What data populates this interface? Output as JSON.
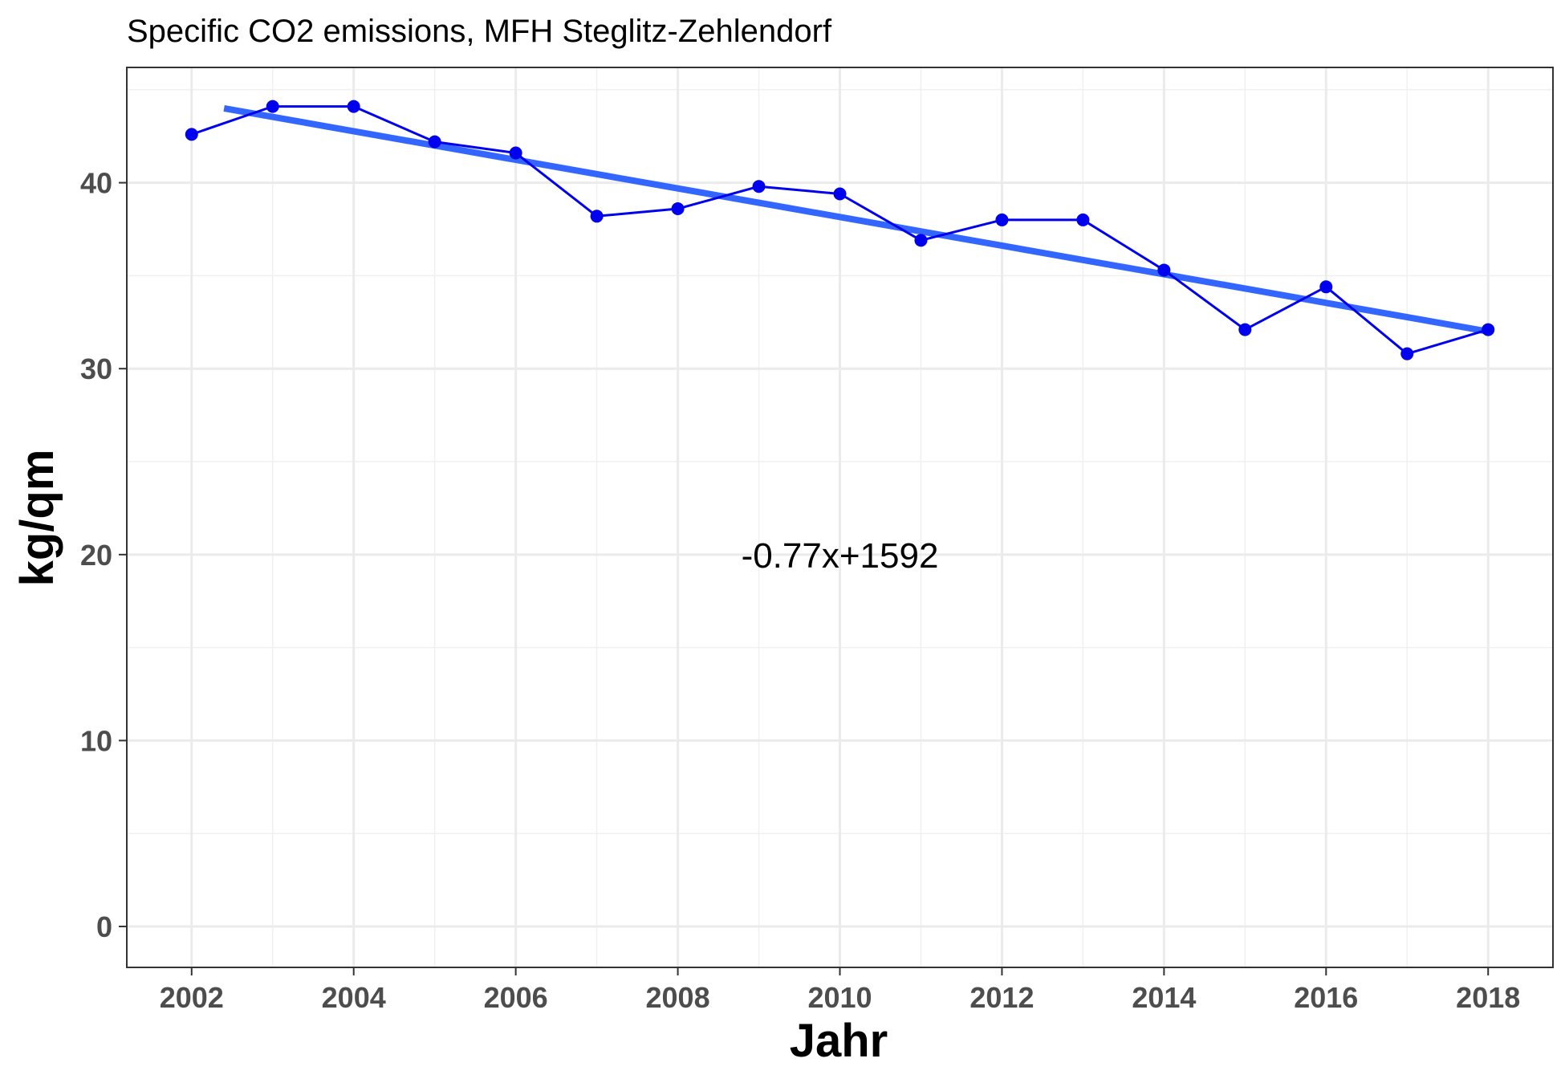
{
  "chart_data": {
    "type": "line",
    "title": "Specific CO2 emissions, MFH Steglitz-Zehlendorf",
    "xlabel": "Jahr",
    "ylabel": "kg/qm",
    "xlim": [
      2001.2,
      2018.8
    ],
    "ylim": [
      -2.2,
      46.2
    ],
    "x_ticks": [
      2002,
      2004,
      2006,
      2008,
      2010,
      2012,
      2014,
      2016,
      2018
    ],
    "y_ticks": [
      0,
      10,
      20,
      30,
      40
    ],
    "grid": true,
    "series": [
      {
        "x": [
          2002,
          2003,
          2004,
          2005,
          2006,
          2007,
          2008,
          2009,
          2010,
          2011,
          2012,
          2013,
          2014,
          2015,
          2016,
          2017,
          2018
        ],
        "values": [
          42.6,
          44.1,
          44.1,
          42.2,
          41.6,
          38.2,
          38.6,
          39.8,
          39.4,
          36.9,
          38.0,
          38.0,
          35.3,
          32.1,
          34.4,
          30.8,
          32.1
        ],
        "color": "#0000ee"
      }
    ],
    "trendline": {
      "slope": -0.77,
      "intercept": 1592,
      "x_range": [
        2002.4,
        2018
      ],
      "y_range": [
        44.0,
        32.0
      ],
      "color": "#3366ff"
    },
    "annotations": [
      {
        "text": "-0.77x+1592",
        "x": 2010,
        "y": 20
      }
    ]
  }
}
